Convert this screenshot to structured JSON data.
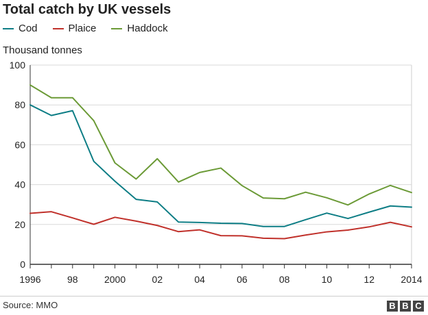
{
  "chart_data": {
    "type": "line",
    "title": "Total catch by UK vessels",
    "ylabel": "Thousand tonnes",
    "xlabel": "",
    "x": [
      1996,
      1997,
      1998,
      1999,
      2000,
      2001,
      2002,
      2003,
      2004,
      2005,
      2006,
      2007,
      2008,
      2009,
      2010,
      2011,
      2012,
      2013,
      2014
    ],
    "xlim": [
      1996,
      2014
    ],
    "ylim": [
      0,
      100
    ],
    "x_tick_values": [
      1996,
      1998,
      2000,
      2002,
      2004,
      2006,
      2008,
      2010,
      2012,
      2014
    ],
    "x_tick_labels": [
      "1996",
      "98",
      "2000",
      "02",
      "04",
      "06",
      "08",
      "10",
      "12",
      "2014"
    ],
    "y_tick_values": [
      0,
      20,
      40,
      60,
      80,
      100
    ],
    "y_tick_labels": [
      "0",
      "20",
      "40",
      "60",
      "80",
      "100"
    ],
    "grid": "horizontal",
    "legend_position": "top-left",
    "series": [
      {
        "name": "Cod",
        "color": "#0d7d85",
        "values": [
          80,
          74.7,
          77.1,
          51.7,
          41.7,
          32.6,
          31.3,
          21.2,
          21,
          20.6,
          20.5,
          19,
          19,
          22.4,
          25.7,
          23,
          26.2,
          29.3,
          28.7
        ]
      },
      {
        "name": "Plaice",
        "color": "#c0302a",
        "values": [
          25.6,
          26.4,
          23.3,
          20.1,
          23.6,
          21.7,
          19.5,
          16.4,
          17.3,
          14.4,
          14.3,
          13.1,
          12.9,
          14.7,
          16.3,
          17.2,
          18.8,
          21.1,
          18.8
        ]
      },
      {
        "name": "Haddock",
        "color": "#6b9a36",
        "values": [
          90,
          83.6,
          83.6,
          72.1,
          50.9,
          42.8,
          53,
          41.3,
          46.1,
          48.3,
          39.5,
          33.3,
          32.9,
          36.2,
          33.4,
          29.8,
          35.3,
          39.6,
          36
        ]
      }
    ]
  },
  "footer": {
    "source": "Source: MMO",
    "logo_letters": [
      "B",
      "B",
      "C"
    ]
  }
}
